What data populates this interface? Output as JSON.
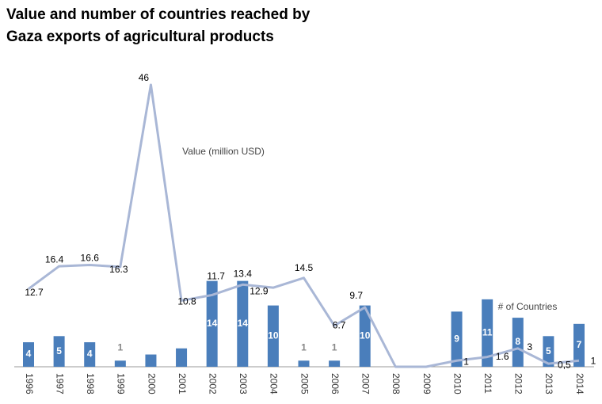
{
  "chart_data": {
    "type": "combo",
    "title": [
      "Value and number of countries reached by",
      "Gaza exports of agricultural products"
    ],
    "categories": [
      "1996",
      "1997",
      "1998",
      "1999",
      "2000",
      "2001",
      "2002",
      "2003",
      "2004",
      "2005",
      "2006",
      "2007",
      "2008",
      "2009",
      "2010",
      "2011",
      "2012",
      "2013",
      "2014"
    ],
    "ylim": [
      0,
      46
    ],
    "series": [
      {
        "name": "# of Countries",
        "type": "bar",
        "color": "#4a7ebb",
        "values": [
          4,
          5,
          4,
          1,
          2,
          3,
          14,
          14,
          10,
          1,
          1,
          10,
          0,
          0,
          9,
          11,
          8,
          5,
          7
        ],
        "value_labels": [
          "4",
          "5",
          "4",
          "1",
          null,
          null,
          "14",
          "14",
          "10",
          "1",
          "1",
          "10",
          null,
          null,
          "9",
          "11",
          "8",
          "5",
          "7"
        ]
      },
      {
        "name": "Value (million USD)",
        "type": "line",
        "color": "#a9b7d6",
        "values": [
          12.7,
          16.4,
          16.6,
          16.3,
          46,
          10.8,
          11.7,
          13.4,
          12.9,
          14.5,
          6.7,
          9.7,
          0,
          0,
          1,
          1.6,
          3,
          0.5,
          1
        ],
        "value_labels": [
          "12.7",
          "16.4",
          "16.6",
          "16.3",
          "46",
          "10.8",
          "11.7",
          "13.4",
          "12.9",
          "14.5",
          "6.7",
          "9.7",
          null,
          null,
          "1",
          "1.6",
          "3",
          "0,5",
          "1"
        ]
      }
    ]
  }
}
